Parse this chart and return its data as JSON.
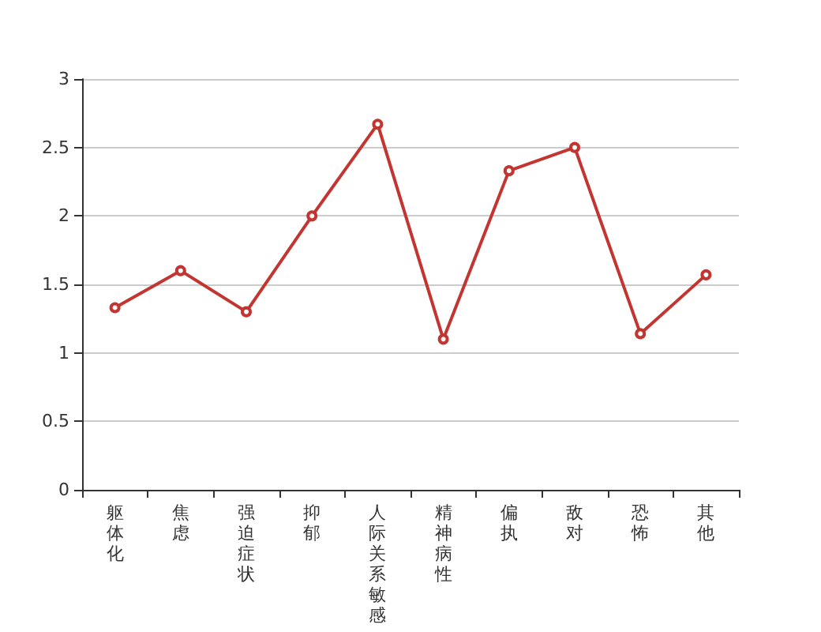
{
  "chart_data": {
    "type": "line",
    "categories": [
      "躯体化",
      "焦虑",
      "强迫症状",
      "抑郁",
      "人际关系敏感",
      "精神病性",
      "偏执",
      "敌对",
      "恐怖",
      "其他"
    ],
    "series": [
      {
        "color": "#c23531",
        "values": [
          1.33,
          1.6,
          1.3,
          2.0,
          2.67,
          1.1,
          2.33,
          2.5,
          1.14,
          1.57
        ]
      }
    ],
    "ylim": [
      0,
      3
    ],
    "yticks": [
      0,
      0.5,
      1,
      1.5,
      2,
      2.5,
      3
    ],
    "grid": "y",
    "marker": "circle",
    "line_style": "solid"
  }
}
